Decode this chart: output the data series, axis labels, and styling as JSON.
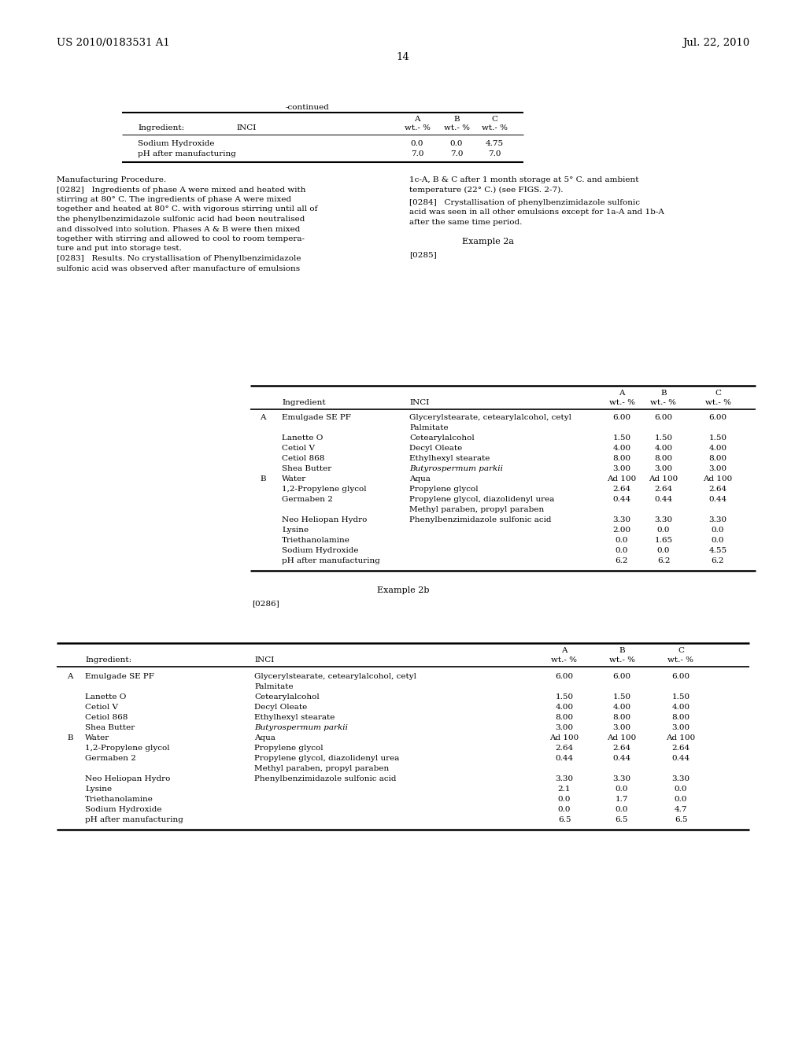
{
  "header_left": "US 2010/0183531 A1",
  "header_right": "Jul. 22, 2010",
  "page_number": "14",
  "continued_label": "-continued",
  "bg_color": "#ffffff",
  "text_color": "#000000",
  "font_size": 7.5,
  "body_font_size": 7.5,
  "header_font_size": 9.5
}
